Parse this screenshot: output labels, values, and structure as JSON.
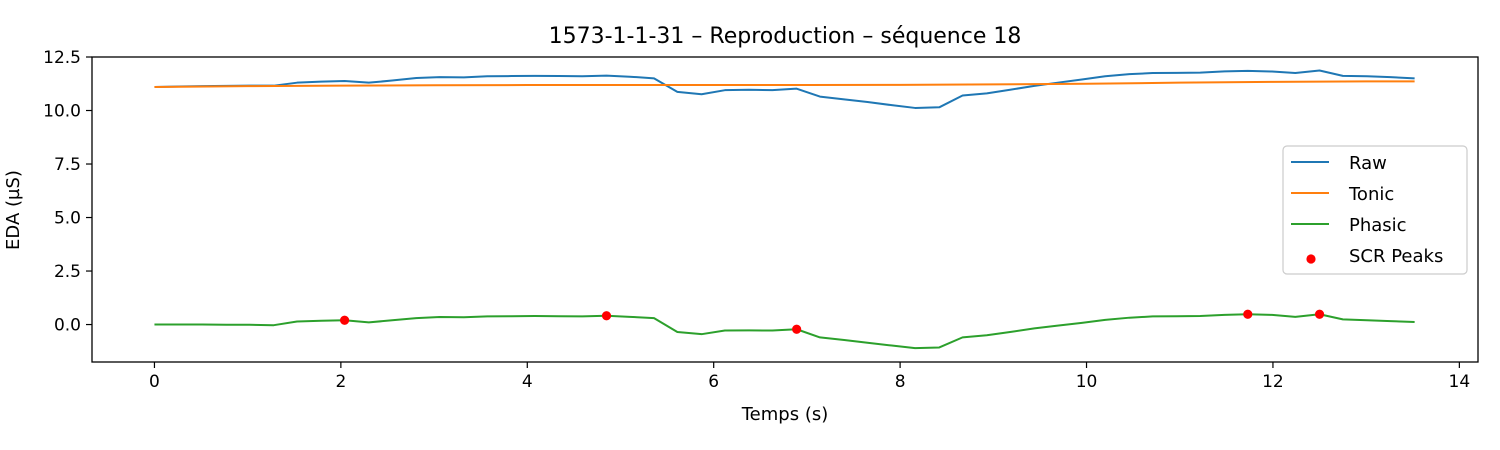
{
  "chart_data": {
    "type": "line",
    "title": "1573-1-1-31 – Reproduction – séquence 18",
    "xlabel": "Temps (s)",
    "ylabel": "EDA (µS)",
    "xlim": [
      -0.67,
      14.2
    ],
    "ylim": [
      -1.75,
      12.5
    ],
    "xticks": [
      0,
      2,
      4,
      6,
      8,
      10,
      12,
      14
    ],
    "xtick_labels": [
      "0",
      "2",
      "4",
      "6",
      "8",
      "10",
      "12",
      "14"
    ],
    "yticks": [
      0.0,
      2.5,
      5.0,
      7.5,
      10.0,
      12.5
    ],
    "ytick_labels": [
      "0.0",
      "2.5",
      "5.0",
      "7.5",
      "10.0",
      "12.5"
    ],
    "grid": false,
    "legend_position": "center-right",
    "series": [
      {
        "name": "Raw",
        "kind": "line",
        "color": "#1f77b4",
        "x": [
          0,
          0.26,
          0.51,
          0.77,
          1.02,
          1.28,
          1.53,
          1.79,
          2.04,
          2.3,
          2.55,
          2.81,
          3.06,
          3.32,
          3.57,
          3.83,
          4.08,
          4.34,
          4.59,
          4.85,
          5.1,
          5.36,
          5.61,
          5.87,
          6.12,
          6.38,
          6.63,
          6.89,
          7.14,
          7.4,
          7.65,
          7.91,
          8.16,
          8.42,
          8.67,
          8.93,
          9.18,
          9.44,
          9.69,
          9.95,
          10.2,
          10.46,
          10.71,
          10.97,
          11.22,
          11.48,
          11.73,
          11.99,
          12.24,
          12.5,
          12.75,
          13.01,
          13.26,
          13.52
        ],
        "y": [
          11.1,
          11.12,
          11.14,
          11.15,
          11.16,
          11.16,
          11.3,
          11.35,
          11.38,
          11.3,
          11.4,
          11.52,
          11.56,
          11.55,
          11.6,
          11.61,
          11.62,
          11.61,
          11.6,
          11.63,
          11.58,
          11.5,
          10.87,
          10.76,
          10.95,
          10.97,
          10.95,
          11.02,
          10.65,
          10.52,
          10.4,
          10.25,
          10.12,
          10.15,
          10.7,
          10.8,
          10.97,
          11.15,
          11.3,
          11.45,
          11.6,
          11.7,
          11.75,
          11.76,
          11.77,
          11.83,
          11.85,
          11.82,
          11.75,
          11.87,
          11.62,
          11.6,
          11.56,
          11.5
        ]
      },
      {
        "name": "Tonic",
        "kind": "line",
        "color": "#ff7f0e",
        "x": [
          0,
          1.0,
          2.0,
          3.0,
          4.0,
          5.0,
          6.0,
          7.0,
          8.0,
          9.0,
          10.0,
          11.0,
          12.0,
          13.0,
          13.52
        ],
        "y": [
          11.1,
          11.14,
          11.16,
          11.18,
          11.19,
          11.19,
          11.19,
          11.19,
          11.2,
          11.22,
          11.25,
          11.3,
          11.34,
          11.36,
          11.36
        ]
      },
      {
        "name": "Phasic",
        "kind": "line",
        "color": "#2ca02c",
        "x": [
          0,
          0.26,
          0.51,
          0.77,
          1.02,
          1.28,
          1.53,
          1.79,
          2.04,
          2.3,
          2.55,
          2.81,
          3.06,
          3.32,
          3.57,
          3.83,
          4.08,
          4.34,
          4.59,
          4.85,
          5.1,
          5.36,
          5.61,
          5.87,
          6.12,
          6.38,
          6.63,
          6.89,
          7.14,
          7.4,
          7.65,
          7.91,
          8.16,
          8.42,
          8.67,
          8.93,
          9.18,
          9.44,
          9.69,
          9.95,
          10.2,
          10.46,
          10.71,
          10.97,
          11.22,
          11.48,
          11.73,
          11.99,
          12.24,
          12.5,
          12.75,
          13.01,
          13.26,
          13.52
        ],
        "y": [
          0.0,
          0.0,
          0.0,
          -0.01,
          -0.01,
          -0.03,
          0.14,
          0.18,
          0.2,
          0.1,
          0.2,
          0.3,
          0.35,
          0.34,
          0.38,
          0.39,
          0.4,
          0.39,
          0.38,
          0.41,
          0.36,
          0.3,
          -0.35,
          -0.45,
          -0.28,
          -0.27,
          -0.28,
          -0.22,
          -0.6,
          -0.72,
          -0.85,
          -0.98,
          -1.1,
          -1.07,
          -0.6,
          -0.5,
          -0.35,
          -0.18,
          -0.05,
          0.08,
          0.22,
          0.32,
          0.38,
          0.39,
          0.4,
          0.45,
          0.48,
          0.45,
          0.36,
          0.48,
          0.24,
          0.2,
          0.16,
          0.12
        ]
      },
      {
        "name": "SCR Peaks",
        "kind": "scatter",
        "color": "#ff0000",
        "x": [
          2.04,
          4.85,
          6.89,
          11.73,
          12.5
        ],
        "y": [
          0.2,
          0.41,
          -0.22,
          0.48,
          0.48
        ]
      }
    ]
  }
}
